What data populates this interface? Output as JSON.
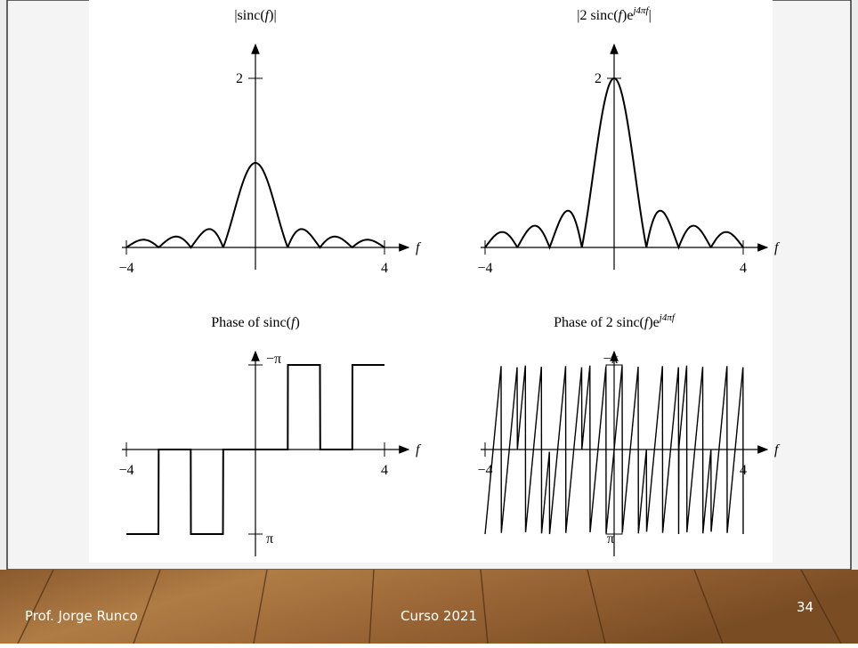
{
  "plots": [
    {
      "title": {
        "base": "|sinc(",
        "var": "f",
        "tail": ")|"
      },
      "y_tick": "2",
      "x_ticks": [
        "−4",
        "4"
      ],
      "x_axis_label": "f"
    },
    {
      "title": {
        "base": "|2 sinc(",
        "var": "f",
        "mid": ")e",
        "sup": "j4πf",
        "tail": "|"
      },
      "y_tick": "2",
      "x_ticks": [
        "−4",
        "4"
      ],
      "x_axis_label": "f"
    },
    {
      "title": {
        "base": "Phase of sinc(",
        "var": "f",
        "tail": ")"
      },
      "y_ticks": [
        "π",
        "−π"
      ],
      "x_ticks": [
        "−4",
        "4"
      ],
      "x_axis_label": "f"
    },
    {
      "title": {
        "base": "Phase of 2 sinc(",
        "var": "f",
        "mid": ")e",
        "sup": "j4πf"
      },
      "y_ticks": [
        "π",
        "−π"
      ],
      "x_ticks": [
        "−4",
        "4"
      ],
      "x_axis_label": "f"
    }
  ],
  "footer": {
    "author": "Prof. Jorge Runco",
    "course": "Curso 2021",
    "page": "34"
  }
}
